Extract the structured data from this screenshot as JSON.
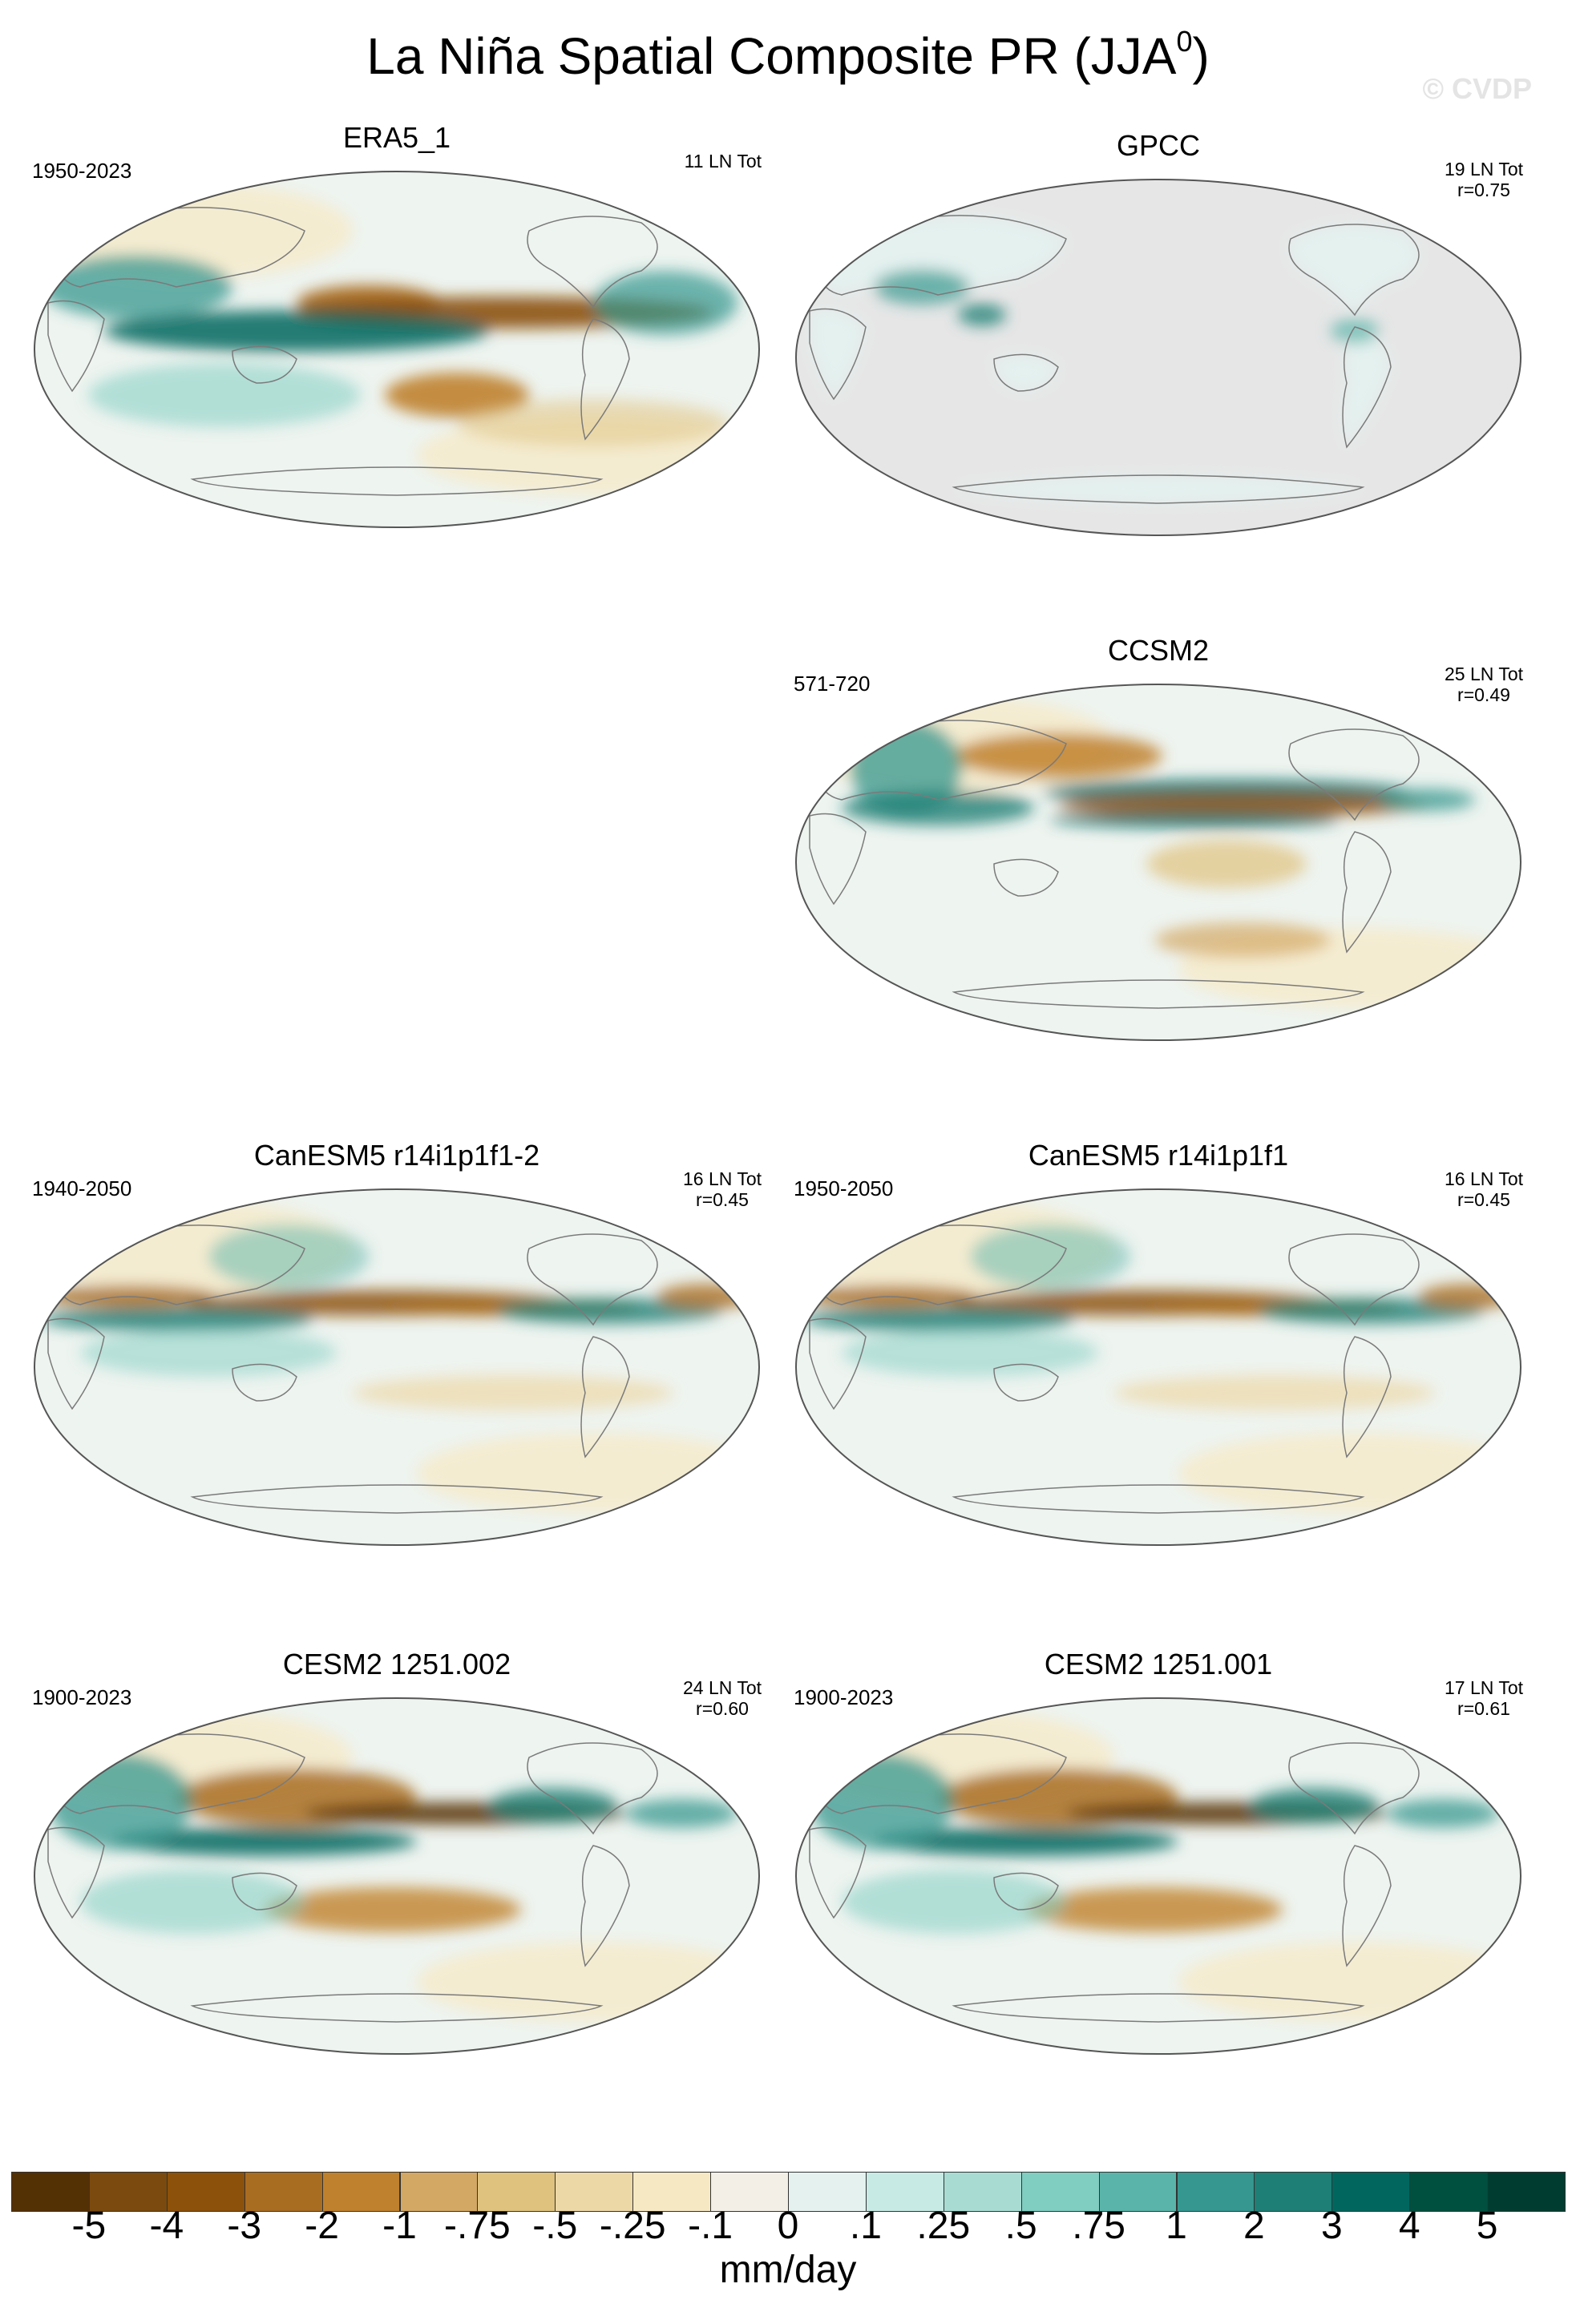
{
  "title": "La Niña Spatial Composite PR (JJA",
  "title_sup": "0",
  "title_close": ")",
  "watermark": "© CVDP",
  "units": "mm/day",
  "colorbar": {
    "labels": [
      "-5",
      "-4",
      "-3",
      "-2",
      "-1",
      "-.75",
      "-.5",
      "-.25",
      "-.1",
      "0",
      ".1",
      ".25",
      ".5",
      ".75",
      "1",
      "2",
      "3",
      "4",
      "5"
    ],
    "colors": [
      "#543005",
      "#7a4a0e",
      "#8c510a",
      "#a96d21",
      "#bf812d",
      "#d3a865",
      "#dfc27d",
      "#ecd7a7",
      "#f6e8c3",
      "#f3efe6",
      "#e4f1ef",
      "#c7eae5",
      "#a8dcd3",
      "#80cdc1",
      "#5ab4a9",
      "#35978f",
      "#1e7f76",
      "#01665e",
      "#00503f",
      "#003c30"
    ]
  },
  "chart_data": [
    {
      "type": "heatmap",
      "title": "ERA5_1",
      "period": "1950-2023",
      "count_label": "11 LN Tot",
      "correlation": "",
      "variant": "era5",
      "land_only": false
    },
    {
      "type": "heatmap",
      "title": "GPCC",
      "period": "",
      "count_label": "19 LN Tot",
      "correlation": "r=0.75",
      "variant": "gpcc",
      "land_only": true
    },
    {
      "type": "heatmap",
      "title": "CCSM2",
      "period": "571-720",
      "count_label": "25 LN Tot",
      "correlation": "r=0.49",
      "variant": "ccsm2",
      "land_only": false
    },
    {
      "type": "heatmap",
      "title": "CanESM5 r14i1p1f1-2",
      "period": "1940-2050",
      "count_label": "16 LN Tot",
      "correlation": "r=0.45",
      "variant": "canesm",
      "land_only": false
    },
    {
      "type": "heatmap",
      "title": "CanESM5 r14i1p1f1",
      "period": "1950-2050",
      "count_label": "16 LN Tot",
      "correlation": "r=0.45",
      "variant": "canesm",
      "land_only": false
    },
    {
      "type": "heatmap",
      "title": "CESM2 1251.002",
      "period": "1900-2023",
      "count_label": "24 LN Tot",
      "correlation": "r=0.60",
      "variant": "cesm",
      "land_only": false
    },
    {
      "type": "heatmap",
      "title": "CESM2 1251.001",
      "period": "1900-2023",
      "count_label": "17 LN Tot",
      "correlation": "r=0.61",
      "variant": "cesm",
      "land_only": false
    }
  ]
}
